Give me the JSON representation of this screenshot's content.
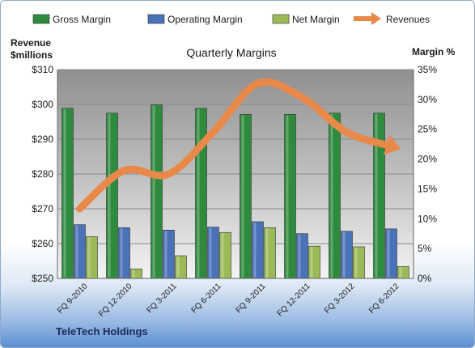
{
  "chart_data": {
    "type": "bar+line",
    "title": "Quarterly Margins",
    "company": "TeleTech Holdings",
    "categories": [
      "FQ 9-2010",
      "FQ 12-2010",
      "FQ 3-2011",
      "FQ 6-2011",
      "FQ 9-2011",
      "FQ 12-2011",
      "FQ 3-2012",
      "FQ 6-2012"
    ],
    "left_axis": {
      "label_line1": "Revenue",
      "label_line2": "$millions",
      "range": [
        250,
        310
      ],
      "ticks": [
        "$250",
        "$260",
        "$270",
        "$280",
        "$290",
        "$300",
        "$310"
      ]
    },
    "right_axis": {
      "label": "Margin %",
      "range": [
        0,
        35
      ],
      "ticks": [
        "0%",
        "5%",
        "10%",
        "15%",
        "20%",
        "25%",
        "30%",
        "35%"
      ]
    },
    "series": [
      {
        "name": "Gross Margin",
        "axis": "right",
        "type": "bar",
        "color": "#2e8b3e",
        "values": [
          28.5,
          27.7,
          29.1,
          28.5,
          27.5,
          27.5,
          27.7,
          27.7
        ]
      },
      {
        "name": "Operating Margin",
        "axis": "right",
        "type": "bar",
        "color": "#4a72b8",
        "values": [
          9.0,
          8.5,
          8.1,
          8.6,
          9.5,
          7.5,
          7.9,
          8.3
        ]
      },
      {
        "name": "Net Margin",
        "axis": "right",
        "type": "bar",
        "color": "#9bbb59",
        "values": [
          7.0,
          1.6,
          3.8,
          7.7,
          8.5,
          5.4,
          5.3,
          2.0
        ]
      },
      {
        "name": "Revenues",
        "axis": "left",
        "type": "line",
        "color": "#e8894a",
        "values": [
          270,
          281,
          280,
          292,
          306,
          302,
          292,
          288
        ]
      }
    ],
    "grid": true,
    "legend": "top"
  }
}
